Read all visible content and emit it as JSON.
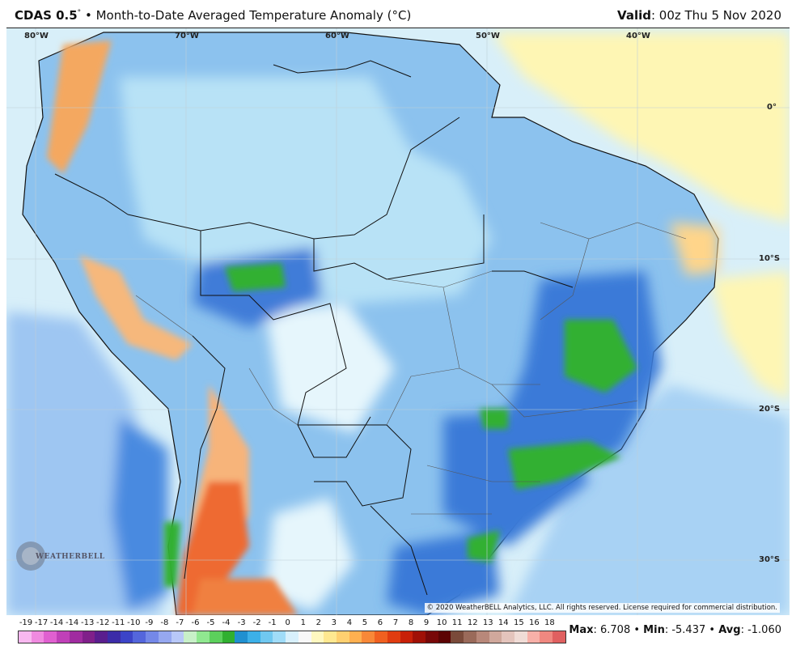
{
  "header": {
    "product": "CDAS 0.5",
    "degree_mark": "°",
    "bullet": "•",
    "title": "Month-to-Date Averaged Temperature Anomaly (°C)",
    "valid_label": "Valid",
    "valid_value": ": 00z Thu 5 Nov 2020"
  },
  "map": {
    "longitude_labels": [
      "80°W",
      "70°W",
      "60°W",
      "50°W",
      "40°W"
    ],
    "latitude_labels": [
      "0°",
      "10°S",
      "20°S",
      "30°S"
    ],
    "copyright": "© 2020 WeatherBELL Analytics, LLC. All rights reserved. License required for commercial distribution.",
    "logo_text": "WEATHERBELL",
    "ocean_color": "#dff3fb",
    "land_color": "#8fc6ef"
  },
  "legend": {
    "labels": [
      "-19",
      "-17",
      "-14",
      "-14",
      "-13",
      "-12",
      "-11",
      "-10",
      "-9",
      "-8",
      "-7",
      "-6",
      "-5",
      "-4",
      "-3",
      "-2",
      "-1",
      "0",
      "1",
      "2",
      "3",
      "4",
      "5",
      "6",
      "7",
      "8",
      "9",
      "10",
      "11",
      "12",
      "13",
      "14",
      "15",
      "16",
      "18"
    ],
    "colors": [
      "#f9b8f0",
      "#f08ae0",
      "#e060d0",
      "#c040b8",
      "#a02ca0",
      "#80208a",
      "#5a1e8e",
      "#3c2ca8",
      "#3c44c8",
      "#5466dc",
      "#7488e8",
      "#96a8f0",
      "#b8c8f8",
      "#c8f0c8",
      "#90e890",
      "#5cd05c",
      "#30b030",
      "#2090d0",
      "#3cb0e8",
      "#70c8f0",
      "#a0dcf8",
      "#d8f0fc",
      "#f8f8f8",
      "#fff8c0",
      "#ffe890",
      "#ffd070",
      "#ffb050",
      "#f88838",
      "#f06020",
      "#e03c10",
      "#c82008",
      "#a01006",
      "#780808",
      "#5c0404",
      "#7a4a3a",
      "#9a6a5a",
      "#b8887a",
      "#d0a89c",
      "#e4c4bc",
      "#f0dcd6",
      "#f8b0a8",
      "#f08880",
      "#e06060"
    ]
  },
  "stats": {
    "max_label": "Max",
    "max_value": ": 6.708",
    "min_label": "Min",
    "min_value": ": -5.437",
    "avg_label": "Avg",
    "avg_value": ": -1.060",
    "sep": " • "
  }
}
